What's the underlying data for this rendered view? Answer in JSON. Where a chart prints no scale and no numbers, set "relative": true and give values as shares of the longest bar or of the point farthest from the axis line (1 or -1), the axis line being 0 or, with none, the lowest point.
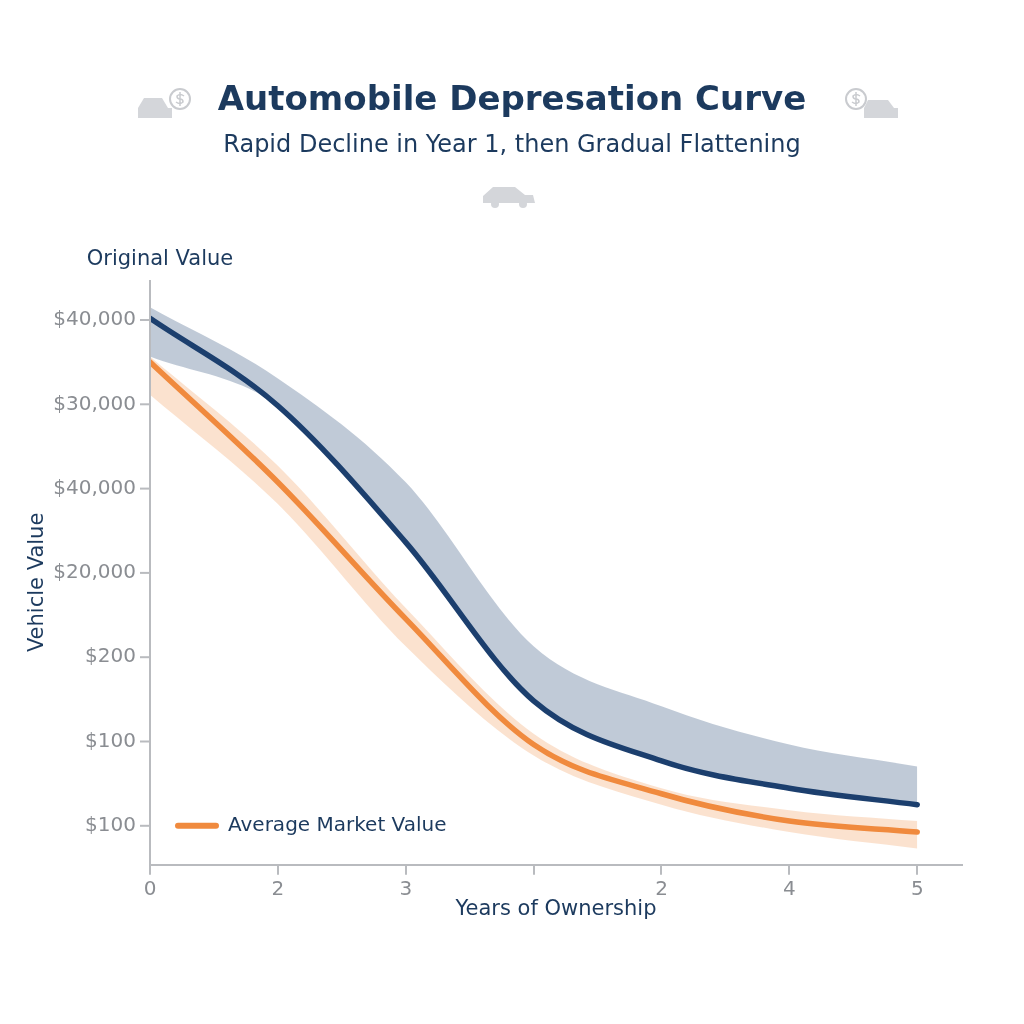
{
  "chart_data": {
    "type": "line",
    "title": "Automobile Depresation Curve",
    "subtitle": "Rapid Decline in Year 1, then Gradual Flattening",
    "xlabel": "Years of Ownership",
    "ylabel": "Vehicle Value",
    "annotations": [
      "Original Value",
      "$40,000",
      "$30,000",
      "$40,000",
      "$20,000",
      "$200",
      "$100",
      "$100"
    ],
    "categories": [
      "0",
      "2",
      "3",
      null,
      "2",
      "4",
      "5"
    ],
    "relative": true,
    "series": [
      {
        "color": "#1c3f6e",
        "values": [
          1,
          0.84,
          0.59,
          0.3,
          0.19,
          0.14,
          0.11
        ],
        "upper": [
          1.02,
          0.89,
          0.7,
          0.4,
          0.29,
          0.22,
          0.18
        ],
        "lower": [
          0.93,
          0.84,
          0.59,
          0.3,
          0.19,
          0.14,
          0.11
        ]
      },
      {
        "name": "Average Market Value",
        "color": "#f08a3e",
        "values": [
          0.92,
          0.7,
          0.45,
          0.22,
          0.13,
          0.08,
          0.06
        ],
        "upper": [
          0.93,
          0.73,
          0.47,
          0.24,
          0.14,
          0.1,
          0.08
        ],
        "lower": [
          0.86,
          0.66,
          0.4,
          0.2,
          0.11,
          0.06,
          0.03
        ]
      }
    ],
    "grid": false,
    "legend": "bottom left",
    "marker": "none",
    "line_style": "solid"
  }
}
